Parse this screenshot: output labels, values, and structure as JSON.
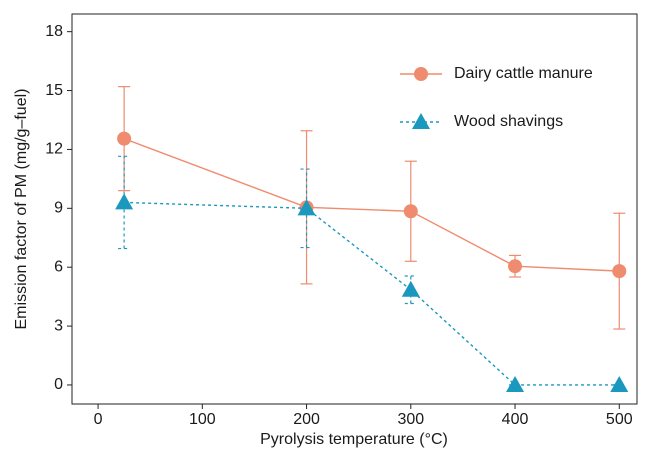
{
  "chart_data": {
    "type": "line",
    "x_label": "Pyrolysis temperature (°C)",
    "y_label": "Emission factor of PM (mg/g–fuel)",
    "x": [
      25,
      200,
      300,
      400,
      500
    ],
    "series": [
      {
        "name": "Dairy cattle manure",
        "color": "#ef8b6e",
        "marker": "circle",
        "dashed": false,
        "values": [
          12.55,
          9.05,
          8.85,
          6.05,
          5.8
        ],
        "errors": [
          2.65,
          3.9,
          2.55,
          0.55,
          2.95
        ]
      },
      {
        "name": "Wood shavings",
        "color": "#1b98bd",
        "marker": "triangle",
        "dashed": true,
        "values": [
          9.3,
          9.0,
          4.85,
          0,
          0
        ],
        "errors": [
          2.35,
          2.0,
          0.7,
          0,
          0
        ]
      }
    ],
    "xlim": [
      -25,
      517
    ],
    "xticks": [
      0,
      100,
      200,
      300,
      400,
      500
    ],
    "ylim": [
      -0.97,
      18.9
    ],
    "yticks": [
      0,
      3,
      6,
      9,
      12,
      15,
      18
    ],
    "grid": false,
    "legend": "top-right"
  }
}
